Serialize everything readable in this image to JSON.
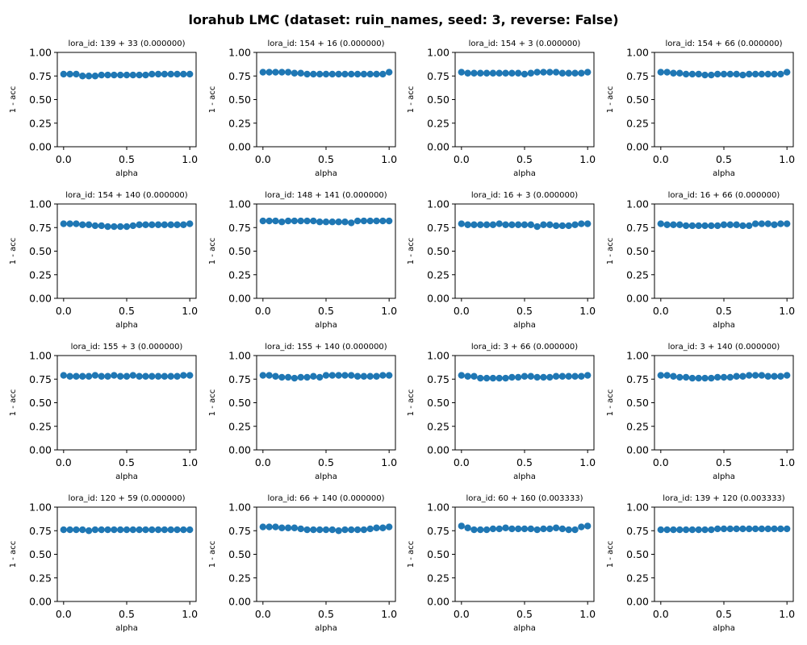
{
  "figure": {
    "title": "lorahub LMC (dataset: ruin_names, seed: 3, reverse: False)"
  },
  "style": {
    "marker_color": "#1f77b4",
    "axis_color": "#000000",
    "background": "#ffffff"
  },
  "chart_data": [
    {
      "type": "scatter",
      "title": "lora_id: 139 + 33 (0.000000)",
      "xlabel": "alpha",
      "ylabel": "1 - acc",
      "xlim": [
        -0.05,
        1.05
      ],
      "ylim": [
        0,
        1
      ],
      "xticks": [
        "0.0",
        "0.5",
        "1.0"
      ],
      "yticks": [
        "0.00",
        "0.25",
        "0.50",
        "0.75",
        "1.00"
      ],
      "x": [
        0,
        0.05,
        0.1,
        0.15,
        0.2,
        0.25,
        0.3,
        0.35,
        0.4,
        0.45,
        0.5,
        0.55,
        0.6,
        0.65,
        0.7,
        0.75,
        0.8,
        0.85,
        0.9,
        0.95,
        1
      ],
      "y": [
        0.77,
        0.77,
        0.77,
        0.75,
        0.75,
        0.75,
        0.76,
        0.76,
        0.76,
        0.76,
        0.76,
        0.76,
        0.76,
        0.76,
        0.77,
        0.77,
        0.77,
        0.77,
        0.77,
        0.77,
        0.77
      ]
    },
    {
      "type": "scatter",
      "title": "lora_id: 154 + 16 (0.000000)",
      "xlabel": "alpha",
      "ylabel": "1 - acc",
      "xlim": [
        -0.05,
        1.05
      ],
      "ylim": [
        0,
        1
      ],
      "xticks": [
        "0.0",
        "0.5",
        "1.0"
      ],
      "yticks": [
        "0.00",
        "0.25",
        "0.50",
        "0.75",
        "1.00"
      ],
      "x": [
        0,
        0.05,
        0.1,
        0.15,
        0.2,
        0.25,
        0.3,
        0.35,
        0.4,
        0.45,
        0.5,
        0.55,
        0.6,
        0.65,
        0.7,
        0.75,
        0.8,
        0.85,
        0.9,
        0.95,
        1
      ],
      "y": [
        0.79,
        0.79,
        0.79,
        0.79,
        0.79,
        0.78,
        0.78,
        0.77,
        0.77,
        0.77,
        0.77,
        0.77,
        0.77,
        0.77,
        0.77,
        0.77,
        0.77,
        0.77,
        0.77,
        0.77,
        0.79
      ]
    },
    {
      "type": "scatter",
      "title": "lora_id: 154 + 3 (0.000000)",
      "xlabel": "alpha",
      "ylabel": "1 - acc",
      "xlim": [
        -0.05,
        1.05
      ],
      "ylim": [
        0,
        1
      ],
      "xticks": [
        "0.0",
        "0.5",
        "1.0"
      ],
      "yticks": [
        "0.00",
        "0.25",
        "0.50",
        "0.75",
        "1.00"
      ],
      "x": [
        0,
        0.05,
        0.1,
        0.15,
        0.2,
        0.25,
        0.3,
        0.35,
        0.4,
        0.45,
        0.5,
        0.55,
        0.6,
        0.65,
        0.7,
        0.75,
        0.8,
        0.85,
        0.9,
        0.95,
        1
      ],
      "y": [
        0.79,
        0.78,
        0.78,
        0.78,
        0.78,
        0.78,
        0.78,
        0.78,
        0.78,
        0.78,
        0.77,
        0.78,
        0.79,
        0.79,
        0.79,
        0.79,
        0.78,
        0.78,
        0.78,
        0.78,
        0.79
      ]
    },
    {
      "type": "scatter",
      "title": "lora_id: 154 + 66 (0.000000)",
      "xlabel": "alpha",
      "ylabel": "1 - acc",
      "xlim": [
        -0.05,
        1.05
      ],
      "ylim": [
        0,
        1
      ],
      "xticks": [
        "0.0",
        "0.5",
        "1.0"
      ],
      "yticks": [
        "0.00",
        "0.25",
        "0.50",
        "0.75",
        "1.00"
      ],
      "x": [
        0,
        0.05,
        0.1,
        0.15,
        0.2,
        0.25,
        0.3,
        0.35,
        0.4,
        0.45,
        0.5,
        0.55,
        0.6,
        0.65,
        0.7,
        0.75,
        0.8,
        0.85,
        0.9,
        0.95,
        1
      ],
      "y": [
        0.79,
        0.79,
        0.78,
        0.78,
        0.77,
        0.77,
        0.77,
        0.76,
        0.76,
        0.77,
        0.77,
        0.77,
        0.77,
        0.76,
        0.77,
        0.77,
        0.77,
        0.77,
        0.77,
        0.77,
        0.79
      ]
    },
    {
      "type": "scatter",
      "title": "lora_id: 154 + 140 (0.000000)",
      "xlabel": "alpha",
      "ylabel": "1 - acc",
      "xlim": [
        -0.05,
        1.05
      ],
      "ylim": [
        0,
        1
      ],
      "xticks": [
        "0.0",
        "0.5",
        "1.0"
      ],
      "yticks": [
        "0.00",
        "0.25",
        "0.50",
        "0.75",
        "1.00"
      ],
      "x": [
        0,
        0.05,
        0.1,
        0.15,
        0.2,
        0.25,
        0.3,
        0.35,
        0.4,
        0.45,
        0.5,
        0.55,
        0.6,
        0.65,
        0.7,
        0.75,
        0.8,
        0.85,
        0.9,
        0.95,
        1
      ],
      "y": [
        0.79,
        0.79,
        0.79,
        0.78,
        0.78,
        0.77,
        0.77,
        0.76,
        0.76,
        0.76,
        0.76,
        0.77,
        0.78,
        0.78,
        0.78,
        0.78,
        0.78,
        0.78,
        0.78,
        0.78,
        0.79
      ]
    },
    {
      "type": "scatter",
      "title": "lora_id: 148 + 141 (0.000000)",
      "xlabel": "alpha",
      "ylabel": "1 - acc",
      "xlim": [
        -0.05,
        1.05
      ],
      "ylim": [
        0,
        1
      ],
      "xticks": [
        "0.0",
        "0.5",
        "1.0"
      ],
      "yticks": [
        "0.00",
        "0.25",
        "0.50",
        "0.75",
        "1.00"
      ],
      "x": [
        0,
        0.05,
        0.1,
        0.15,
        0.2,
        0.25,
        0.3,
        0.35,
        0.4,
        0.45,
        0.5,
        0.55,
        0.6,
        0.65,
        0.7,
        0.75,
        0.8,
        0.85,
        0.9,
        0.95,
        1
      ],
      "y": [
        0.82,
        0.82,
        0.82,
        0.81,
        0.82,
        0.82,
        0.82,
        0.82,
        0.82,
        0.81,
        0.81,
        0.81,
        0.81,
        0.81,
        0.8,
        0.82,
        0.82,
        0.82,
        0.82,
        0.82,
        0.82
      ]
    },
    {
      "type": "scatter",
      "title": "lora_id: 16 + 3 (0.000000)",
      "xlabel": "alpha",
      "ylabel": "1 - acc",
      "xlim": [
        -0.05,
        1.05
      ],
      "ylim": [
        0,
        1
      ],
      "xticks": [
        "0.0",
        "0.5",
        "1.0"
      ],
      "yticks": [
        "0.00",
        "0.25",
        "0.50",
        "0.75",
        "1.00"
      ],
      "x": [
        0,
        0.05,
        0.1,
        0.15,
        0.2,
        0.25,
        0.3,
        0.35,
        0.4,
        0.45,
        0.5,
        0.55,
        0.6,
        0.65,
        0.7,
        0.75,
        0.8,
        0.85,
        0.9,
        0.95,
        1
      ],
      "y": [
        0.79,
        0.78,
        0.78,
        0.78,
        0.78,
        0.78,
        0.79,
        0.78,
        0.78,
        0.78,
        0.78,
        0.78,
        0.76,
        0.78,
        0.78,
        0.77,
        0.77,
        0.77,
        0.78,
        0.79,
        0.79
      ]
    },
    {
      "type": "scatter",
      "title": "lora_id: 16 + 66 (0.000000)",
      "xlabel": "alpha",
      "ylabel": "1 - acc",
      "xlim": [
        -0.05,
        1.05
      ],
      "ylim": [
        0,
        1
      ],
      "xticks": [
        "0.0",
        "0.5",
        "1.0"
      ],
      "yticks": [
        "0.00",
        "0.25",
        "0.50",
        "0.75",
        "1.00"
      ],
      "x": [
        0,
        0.05,
        0.1,
        0.15,
        0.2,
        0.25,
        0.3,
        0.35,
        0.4,
        0.45,
        0.5,
        0.55,
        0.6,
        0.65,
        0.7,
        0.75,
        0.8,
        0.85,
        0.9,
        0.95,
        1
      ],
      "y": [
        0.79,
        0.78,
        0.78,
        0.78,
        0.77,
        0.77,
        0.77,
        0.77,
        0.77,
        0.77,
        0.78,
        0.78,
        0.78,
        0.77,
        0.77,
        0.79,
        0.79,
        0.79,
        0.78,
        0.79,
        0.79
      ]
    },
    {
      "type": "scatter",
      "title": "lora_id: 155 + 3 (0.000000)",
      "xlabel": "alpha",
      "ylabel": "1 - acc",
      "xlim": [
        -0.05,
        1.05
      ],
      "ylim": [
        0,
        1
      ],
      "xticks": [
        "0.0",
        "0.5",
        "1.0"
      ],
      "yticks": [
        "0.00",
        "0.25",
        "0.50",
        "0.75",
        "1.00"
      ],
      "x": [
        0,
        0.05,
        0.1,
        0.15,
        0.2,
        0.25,
        0.3,
        0.35,
        0.4,
        0.45,
        0.5,
        0.55,
        0.6,
        0.65,
        0.7,
        0.75,
        0.8,
        0.85,
        0.9,
        0.95,
        1
      ],
      "y": [
        0.79,
        0.78,
        0.78,
        0.78,
        0.78,
        0.79,
        0.78,
        0.78,
        0.79,
        0.78,
        0.78,
        0.79,
        0.78,
        0.78,
        0.78,
        0.78,
        0.78,
        0.78,
        0.78,
        0.79,
        0.79
      ]
    },
    {
      "type": "scatter",
      "title": "lora_id: 155 + 140 (0.000000)",
      "xlabel": "alpha",
      "ylabel": "1 - acc",
      "xlim": [
        -0.05,
        1.05
      ],
      "ylim": [
        0,
        1
      ],
      "xticks": [
        "0.0",
        "0.5",
        "1.0"
      ],
      "yticks": [
        "0.00",
        "0.25",
        "0.50",
        "0.75",
        "1.00"
      ],
      "x": [
        0,
        0.05,
        0.1,
        0.15,
        0.2,
        0.25,
        0.3,
        0.35,
        0.4,
        0.45,
        0.5,
        0.55,
        0.6,
        0.65,
        0.7,
        0.75,
        0.8,
        0.85,
        0.9,
        0.95,
        1
      ],
      "y": [
        0.79,
        0.79,
        0.78,
        0.77,
        0.77,
        0.76,
        0.77,
        0.77,
        0.78,
        0.77,
        0.79,
        0.79,
        0.79,
        0.79,
        0.79,
        0.78,
        0.78,
        0.78,
        0.78,
        0.79,
        0.79
      ]
    },
    {
      "type": "scatter",
      "title": "lora_id: 3 + 66 (0.000000)",
      "xlabel": "alpha",
      "ylabel": "1 - acc",
      "xlim": [
        -0.05,
        1.05
      ],
      "ylim": [
        0,
        1
      ],
      "xticks": [
        "0.0",
        "0.5",
        "1.0"
      ],
      "yticks": [
        "0.00",
        "0.25",
        "0.50",
        "0.75",
        "1.00"
      ],
      "x": [
        0,
        0.05,
        0.1,
        0.15,
        0.2,
        0.25,
        0.3,
        0.35,
        0.4,
        0.45,
        0.5,
        0.55,
        0.6,
        0.65,
        0.7,
        0.75,
        0.8,
        0.85,
        0.9,
        0.95,
        1
      ],
      "y": [
        0.79,
        0.78,
        0.78,
        0.76,
        0.76,
        0.76,
        0.76,
        0.76,
        0.77,
        0.77,
        0.78,
        0.78,
        0.77,
        0.77,
        0.77,
        0.78,
        0.78,
        0.78,
        0.78,
        0.78,
        0.79
      ]
    },
    {
      "type": "scatter",
      "title": "lora_id: 3 + 140 (0.000000)",
      "xlabel": "alpha",
      "ylabel": "1 - acc",
      "xlim": [
        -0.05,
        1.05
      ],
      "ylim": [
        0,
        1
      ],
      "xticks": [
        "0.0",
        "0.5",
        "1.0"
      ],
      "yticks": [
        "0.00",
        "0.25",
        "0.50",
        "0.75",
        "1.00"
      ],
      "x": [
        0,
        0.05,
        0.1,
        0.15,
        0.2,
        0.25,
        0.3,
        0.35,
        0.4,
        0.45,
        0.5,
        0.55,
        0.6,
        0.65,
        0.7,
        0.75,
        0.8,
        0.85,
        0.9,
        0.95,
        1
      ],
      "y": [
        0.79,
        0.79,
        0.78,
        0.77,
        0.77,
        0.76,
        0.76,
        0.76,
        0.76,
        0.77,
        0.77,
        0.77,
        0.78,
        0.78,
        0.79,
        0.79,
        0.79,
        0.78,
        0.78,
        0.78,
        0.79
      ]
    },
    {
      "type": "scatter",
      "title": "lora_id: 120 + 59 (0.000000)",
      "xlabel": "alpha",
      "ylabel": "1 - acc",
      "xlim": [
        -0.05,
        1.05
      ],
      "ylim": [
        0,
        1
      ],
      "xticks": [
        "0.0",
        "0.5",
        "1.0"
      ],
      "yticks": [
        "0.00",
        "0.25",
        "0.50",
        "0.75",
        "1.00"
      ],
      "x": [
        0,
        0.05,
        0.1,
        0.15,
        0.2,
        0.25,
        0.3,
        0.35,
        0.4,
        0.45,
        0.5,
        0.55,
        0.6,
        0.65,
        0.7,
        0.75,
        0.8,
        0.85,
        0.9,
        0.95,
        1
      ],
      "y": [
        0.76,
        0.76,
        0.76,
        0.76,
        0.75,
        0.76,
        0.76,
        0.76,
        0.76,
        0.76,
        0.76,
        0.76,
        0.76,
        0.76,
        0.76,
        0.76,
        0.76,
        0.76,
        0.76,
        0.76,
        0.76
      ]
    },
    {
      "type": "scatter",
      "title": "lora_id: 66 + 140 (0.000000)",
      "xlabel": "alpha",
      "ylabel": "1 - acc",
      "xlim": [
        -0.05,
        1.05
      ],
      "ylim": [
        0,
        1
      ],
      "xticks": [
        "0.0",
        "0.5",
        "1.0"
      ],
      "yticks": [
        "0.00",
        "0.25",
        "0.50",
        "0.75",
        "1.00"
      ],
      "x": [
        0,
        0.05,
        0.1,
        0.15,
        0.2,
        0.25,
        0.3,
        0.35,
        0.4,
        0.45,
        0.5,
        0.55,
        0.6,
        0.65,
        0.7,
        0.75,
        0.8,
        0.85,
        0.9,
        0.95,
        1
      ],
      "y": [
        0.79,
        0.79,
        0.79,
        0.78,
        0.78,
        0.78,
        0.77,
        0.76,
        0.76,
        0.76,
        0.76,
        0.76,
        0.75,
        0.76,
        0.76,
        0.76,
        0.76,
        0.77,
        0.78,
        0.78,
        0.79
      ]
    },
    {
      "type": "scatter",
      "title": "lora_id: 60 + 160 (0.003333)",
      "xlabel": "alpha",
      "ylabel": "1 - acc",
      "xlim": [
        -0.05,
        1.05
      ],
      "ylim": [
        0,
        1
      ],
      "xticks": [
        "0.0",
        "0.5",
        "1.0"
      ],
      "yticks": [
        "0.00",
        "0.25",
        "0.50",
        "0.75",
        "1.00"
      ],
      "x": [
        0,
        0.05,
        0.1,
        0.15,
        0.2,
        0.25,
        0.3,
        0.35,
        0.4,
        0.45,
        0.5,
        0.55,
        0.6,
        0.65,
        0.7,
        0.75,
        0.8,
        0.85,
        0.9,
        0.95,
        1
      ],
      "y": [
        0.8,
        0.78,
        0.76,
        0.76,
        0.76,
        0.77,
        0.77,
        0.78,
        0.77,
        0.77,
        0.77,
        0.77,
        0.76,
        0.77,
        0.77,
        0.78,
        0.77,
        0.76,
        0.76,
        0.79,
        0.8
      ]
    },
    {
      "type": "scatter",
      "title": "lora_id: 139 + 120 (0.003333)",
      "xlabel": "alpha",
      "ylabel": "1 - acc",
      "xlim": [
        -0.05,
        1.05
      ],
      "ylim": [
        0,
        1
      ],
      "xticks": [
        "0.0",
        "0.5",
        "1.0"
      ],
      "yticks": [
        "0.00",
        "0.25",
        "0.50",
        "0.75",
        "1.00"
      ],
      "x": [
        0,
        0.05,
        0.1,
        0.15,
        0.2,
        0.25,
        0.3,
        0.35,
        0.4,
        0.45,
        0.5,
        0.55,
        0.6,
        0.65,
        0.7,
        0.75,
        0.8,
        0.85,
        0.9,
        0.95,
        1
      ],
      "y": [
        0.76,
        0.76,
        0.76,
        0.76,
        0.76,
        0.76,
        0.76,
        0.76,
        0.76,
        0.77,
        0.77,
        0.77,
        0.77,
        0.77,
        0.77,
        0.77,
        0.77,
        0.77,
        0.77,
        0.77,
        0.77
      ]
    }
  ]
}
